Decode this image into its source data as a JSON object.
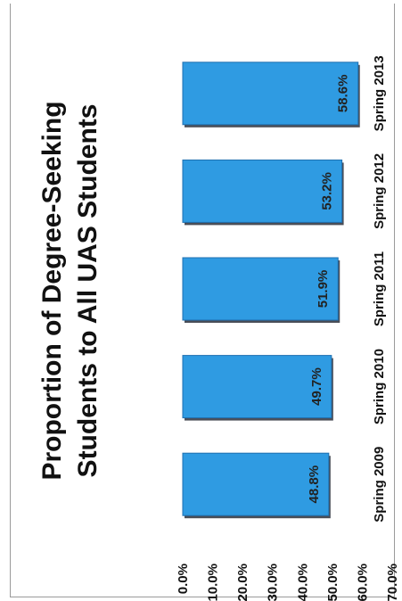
{
  "chart_data": {
    "type": "bar",
    "orientation": "vertical-bars-page-rotated",
    "title_lines": [
      "Proportion of Degree-Seeking",
      "Students to All UAS Students"
    ],
    "categories": [
      "Spring 2009",
      "Spring 2010",
      "Spring 2011",
      "Spring 2012",
      "Spring 2013"
    ],
    "values": [
      48.8,
      49.7,
      51.9,
      53.2,
      58.6
    ],
    "value_labels": [
      "48.8%",
      "49.7%",
      "51.9%",
      "53.2%",
      "58.6%"
    ],
    "ylim": [
      0,
      70
    ],
    "y_ticks": [
      {
        "value": 0,
        "label": "0.0%"
      },
      {
        "value": 10,
        "label": "10.0%"
      },
      {
        "value": 20,
        "label": "20.0%"
      },
      {
        "value": 30,
        "label": "30.0%"
      },
      {
        "value": 40,
        "label": "40.0%"
      },
      {
        "value": 50,
        "label": "50.0%"
      },
      {
        "value": 60,
        "label": "60.0%"
      },
      {
        "value": 70,
        "label": "70.0%"
      }
    ],
    "grid": false,
    "legend": "none",
    "colors": {
      "bar": "#2f9be2",
      "bar_edge": "#1f6fb0",
      "bar_shadow": "#2a2f3a"
    }
  }
}
